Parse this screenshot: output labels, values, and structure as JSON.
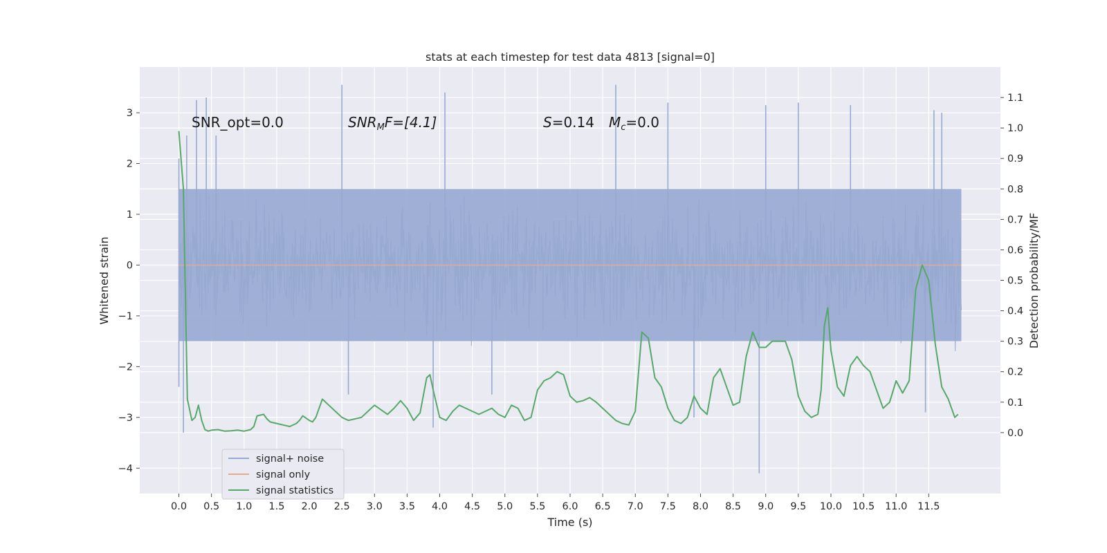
{
  "chart_data": {
    "type": "line",
    "title": "stats at each timestep for test data 4813 [signal=0]",
    "xlabel": "Time (s)",
    "ylabel": "Whitened strain",
    "ylabel_right": "Detection probability/MF",
    "xlim": [
      -0.6,
      12.6
    ],
    "ylim": [
      -4.5,
      3.9
    ],
    "ylim_right": [
      -0.2,
      1.2
    ],
    "x_ticks": [
      0.0,
      0.5,
      1.0,
      1.5,
      2.0,
      2.5,
      3.0,
      3.5,
      4.0,
      4.5,
      5.0,
      5.5,
      6.0,
      6.5,
      7.0,
      7.5,
      8.0,
      8.5,
      9.0,
      9.5,
      10.0,
      10.5,
      11.0,
      11.5
    ],
    "x_tick_labels": [
      "0.0",
      "0.5",
      "1.0",
      "1.5",
      "2.0",
      "2.5",
      "3.0",
      "3.5",
      "4.0",
      "4.5",
      "5.0",
      "5.5",
      "6.0",
      "6.5",
      "7.0",
      "7.5",
      "8.0",
      "8.5",
      "9.0",
      "9.5",
      "10.0",
      "10.5",
      "11.0",
      "11.5"
    ],
    "y_ticks": [
      3,
      2,
      1,
      0,
      -1,
      -2,
      -3,
      -4
    ],
    "y_tick_labels": [
      "3",
      "2",
      "1",
      "0",
      "−1",
      "−2",
      "−3",
      "−4"
    ],
    "y_right_ticks": [
      1.1,
      1.0,
      0.9,
      0.8,
      0.7,
      0.6,
      0.5,
      0.4,
      0.3,
      0.2,
      0.1,
      0.0
    ],
    "y_right_tick_labels": [
      "1.1",
      "1.0",
      "0.9",
      "0.8",
      "0.7",
      "0.6",
      "0.5",
      "0.4",
      "0.3",
      "0.2",
      "0.1",
      "0.0"
    ],
    "grid": true,
    "legend_position": "lower-left",
    "annotations": {
      "snr_opt": "SNR_opt=0.0",
      "snr_mf_prefix": "SNR",
      "snr_mf_sub": "M",
      "snr_mf_rest": "F=[4.1]",
      "s_label": "S",
      "s_value": "=0.14",
      "mc_label": "M",
      "mc_sub": "c",
      "mc_value": "=0.0"
    },
    "series": [
      {
        "name": "signal+ noise",
        "color": "#97a9d1",
        "x_range": [
          0.0,
          12.0
        ],
        "amplitude_band": [
          -1.5,
          1.5
        ],
        "peaks": [
          {
            "x": 0.0,
            "y": 2.1
          },
          {
            "x": 0.0,
            "y": -2.4
          },
          {
            "x": 0.07,
            "y": -3.3
          },
          {
            "x": 0.12,
            "y": 2.55
          },
          {
            "x": 0.27,
            "y": 3.25
          },
          {
            "x": 0.42,
            "y": 3.3
          },
          {
            "x": 0.57,
            "y": 2.55
          },
          {
            "x": 2.5,
            "y": 3.55
          },
          {
            "x": 2.6,
            "y": -2.55
          },
          {
            "x": 4.08,
            "y": 3.4
          },
          {
            "x": 3.9,
            "y": -3.2
          },
          {
            "x": 4.8,
            "y": -2.55
          },
          {
            "x": 6.7,
            "y": 3.55
          },
          {
            "x": 7.5,
            "y": 3.2
          },
          {
            "x": 7.9,
            "y": -3.0
          },
          {
            "x": 8.9,
            "y": -4.1
          },
          {
            "x": 9.0,
            "y": 3.15
          },
          {
            "x": 9.5,
            "y": 3.2
          },
          {
            "x": 10.3,
            "y": 3.15
          },
          {
            "x": 11.45,
            "y": -2.9
          },
          {
            "x": 11.58,
            "y": 3.05
          },
          {
            "x": 11.7,
            "y": 3.0
          }
        ]
      },
      {
        "name": "signal only",
        "color": "#e8a98a",
        "x": [
          0.0,
          12.0
        ],
        "y": [
          0.0,
          0.0
        ]
      },
      {
        "name": "signal statistics",
        "color": "#55a868",
        "axis": "right",
        "x": [
          0.0,
          0.07,
          0.13,
          0.2,
          0.25,
          0.3,
          0.35,
          0.4,
          0.45,
          0.5,
          0.6,
          0.7,
          0.8,
          0.9,
          1.0,
          1.1,
          1.15,
          1.2,
          1.3,
          1.35,
          1.4,
          1.5,
          1.6,
          1.7,
          1.8,
          1.85,
          1.9,
          2.0,
          2.05,
          2.1,
          2.2,
          2.3,
          2.4,
          2.5,
          2.6,
          2.7,
          2.8,
          2.9,
          3.0,
          3.1,
          3.2,
          3.3,
          3.4,
          3.5,
          3.6,
          3.7,
          3.8,
          3.85,
          3.9,
          4.0,
          4.1,
          4.2,
          4.3,
          4.4,
          4.5,
          4.6,
          4.7,
          4.8,
          4.9,
          5.0,
          5.1,
          5.2,
          5.3,
          5.4,
          5.5,
          5.6,
          5.7,
          5.8,
          5.9,
          6.0,
          6.1,
          6.2,
          6.3,
          6.4,
          6.5,
          6.6,
          6.7,
          6.8,
          6.9,
          7.0,
          7.1,
          7.2,
          7.3,
          7.4,
          7.5,
          7.6,
          7.7,
          7.8,
          7.9,
          8.0,
          8.1,
          8.2,
          8.3,
          8.4,
          8.5,
          8.6,
          8.7,
          8.8,
          8.9,
          9.0,
          9.1,
          9.2,
          9.3,
          9.4,
          9.5,
          9.6,
          9.7,
          9.8,
          9.85,
          9.9,
          9.95,
          10.0,
          10.1,
          10.2,
          10.3,
          10.4,
          10.5,
          10.6,
          10.7,
          10.8,
          10.9,
          11.0,
          11.1,
          11.2,
          11.3,
          11.4,
          11.5,
          11.6,
          11.7,
          11.8,
          11.9,
          11.95
        ],
        "y": [
          0.99,
          0.8,
          0.11,
          0.04,
          0.05,
          0.09,
          0.04,
          0.01,
          0.005,
          0.008,
          0.01,
          0.005,
          0.006,
          0.008,
          0.005,
          0.01,
          0.02,
          0.055,
          0.06,
          0.045,
          0.035,
          0.03,
          0.025,
          0.02,
          0.03,
          0.04,
          0.055,
          0.04,
          0.035,
          0.05,
          0.11,
          0.09,
          0.07,
          0.05,
          0.04,
          0.045,
          0.05,
          0.07,
          0.09,
          0.075,
          0.06,
          0.08,
          0.105,
          0.08,
          0.04,
          0.065,
          0.18,
          0.19,
          0.14,
          0.05,
          0.04,
          0.07,
          0.09,
          0.08,
          0.07,
          0.06,
          0.07,
          0.08,
          0.06,
          0.05,
          0.09,
          0.08,
          0.04,
          0.05,
          0.14,
          0.17,
          0.18,
          0.2,
          0.19,
          0.12,
          0.1,
          0.105,
          0.115,
          0.1,
          0.08,
          0.06,
          0.04,
          0.03,
          0.025,
          0.07,
          0.33,
          0.31,
          0.18,
          0.15,
          0.08,
          0.04,
          0.03,
          0.05,
          0.12,
          0.08,
          0.06,
          0.18,
          0.21,
          0.15,
          0.09,
          0.1,
          0.25,
          0.33,
          0.28,
          0.28,
          0.3,
          0.3,
          0.3,
          0.24,
          0.12,
          0.07,
          0.05,
          0.06,
          0.14,
          0.35,
          0.41,
          0.27,
          0.15,
          0.12,
          0.22,
          0.25,
          0.22,
          0.2,
          0.14,
          0.08,
          0.1,
          0.17,
          0.13,
          0.17,
          0.47,
          0.55,
          0.5,
          0.29,
          0.15,
          0.11,
          0.05,
          0.06
        ]
      }
    ]
  }
}
